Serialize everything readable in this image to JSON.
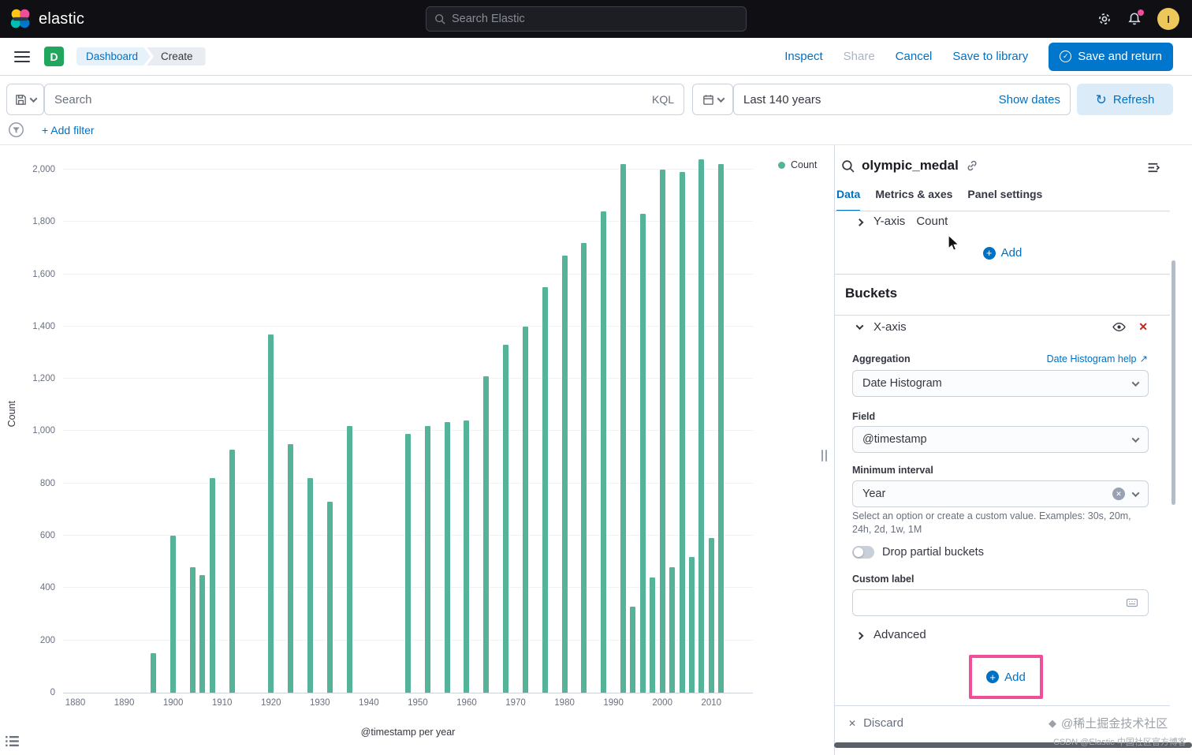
{
  "icons": {
    "plus": "+",
    "check": "✓",
    "close": "✕",
    "refresh": "↻",
    "external": "↗",
    "clear": "✕",
    "gem": "◆"
  },
  "colors": {
    "accent_blue": "#0071c2",
    "bar_green": "#54B399",
    "annotation_pink": "#f04e98",
    "app_badge_green": "#21a75d",
    "danger_red": "#bd271e"
  },
  "topbar": {
    "brand": "elastic",
    "search_placeholder": "Search Elastic",
    "avatar_initial": "I"
  },
  "navbar": {
    "app_badge": "D",
    "breadcrumbs": [
      "Dashboard",
      "Create"
    ],
    "actions": [
      "Inspect",
      "Share",
      "Cancel",
      "Save to library"
    ],
    "primary_action": "Save and return"
  },
  "querybar": {
    "search_placeholder": "Search",
    "language": "KQL",
    "time_range": "Last 140 years",
    "show_dates": "Show dates",
    "refresh_label": "Refresh",
    "add_filter": "+ Add filter"
  },
  "chart": {
    "legend_label": "Count",
    "y_axis_title": "Count",
    "x_axis_title": "@timestamp per year"
  },
  "chart_data": {
    "type": "bar",
    "series_name": "Count",
    "bar_color": "#54B399",
    "xlabel": "@timestamp per year",
    "ylabel": "Count",
    "legend_position": "top-right",
    "grid": true,
    "x_domain": [
      1877.5,
      2018.5
    ],
    "y_top_value": 2045,
    "ylim": [
      0,
      2000
    ],
    "x_ticks": [
      1880,
      1890,
      1900,
      1910,
      1920,
      1930,
      1940,
      1950,
      1960,
      1970,
      1980,
      1990,
      2000,
      2010
    ],
    "y_ticks": [
      {
        "v": 0,
        "label": "0"
      },
      {
        "v": 200,
        "label": "200"
      },
      {
        "v": 400,
        "label": "400"
      },
      {
        "v": 600,
        "label": "600"
      },
      {
        "v": 800,
        "label": "800"
      },
      {
        "v": 1000,
        "label": "1,000"
      },
      {
        "v": 1200,
        "label": "1,200"
      },
      {
        "v": 1400,
        "label": "1,400"
      },
      {
        "v": 1600,
        "label": "1,600"
      },
      {
        "v": 1800,
        "label": "1,800"
      },
      {
        "v": 2000,
        "label": "2,000"
      }
    ],
    "points": [
      [
        1896,
        150
      ],
      [
        1900,
        600
      ],
      [
        1904,
        480
      ],
      [
        1906,
        450
      ],
      [
        1908,
        820
      ],
      [
        1912,
        930
      ],
      [
        1920,
        1370
      ],
      [
        1924,
        950
      ],
      [
        1928,
        820
      ],
      [
        1932,
        730
      ],
      [
        1936,
        1020
      ],
      [
        1948,
        990
      ],
      [
        1952,
        1020
      ],
      [
        1956,
        1035
      ],
      [
        1960,
        1040
      ],
      [
        1964,
        1210
      ],
      [
        1968,
        1330
      ],
      [
        1972,
        1400
      ],
      [
        1976,
        1550
      ],
      [
        1980,
        1670
      ],
      [
        1984,
        1720
      ],
      [
        1988,
        1840
      ],
      [
        1992,
        2020
      ],
      [
        1994,
        330
      ],
      [
        1996,
        1830
      ],
      [
        1998,
        440
      ],
      [
        2000,
        2000
      ],
      [
        2002,
        480
      ],
      [
        2004,
        1990
      ],
      [
        2006,
        520
      ],
      [
        2008,
        2040
      ],
      [
        2010,
        590
      ],
      [
        2012,
        2020
      ]
    ]
  },
  "panel": {
    "title": "olympic_medal",
    "tabs": [
      "Data",
      "Metrics & axes",
      "Panel settings"
    ],
    "active_tab": "Data",
    "metrics_section": {
      "row_label": "Y-axis",
      "row_value": "Count",
      "add_label": "Add"
    },
    "buckets_section": {
      "heading": "Buckets",
      "row_label": "X-axis",
      "aggregation_label": "Aggregation",
      "aggregation_help": "Date Histogram help",
      "aggregation_value": "Date Histogram",
      "field_label": "Field",
      "field_value": "@timestamp",
      "interval_label": "Minimum interval",
      "interval_value": "Year",
      "interval_help": "Select an option or create a custom value. Examples: 30s, 20m, 24h, 2d, 1w, 1M",
      "drop_partial_label": "Drop partial buckets",
      "custom_label_label": "Custom label",
      "custom_label_value": "",
      "advanced_label": "Advanced",
      "add_label": "Add"
    },
    "footer": {
      "discard": "Discard"
    }
  },
  "watermark": {
    "line1": "@稀土掘金技术社区",
    "line2": "CSDN @Elastic 中国社区官方博客"
  }
}
